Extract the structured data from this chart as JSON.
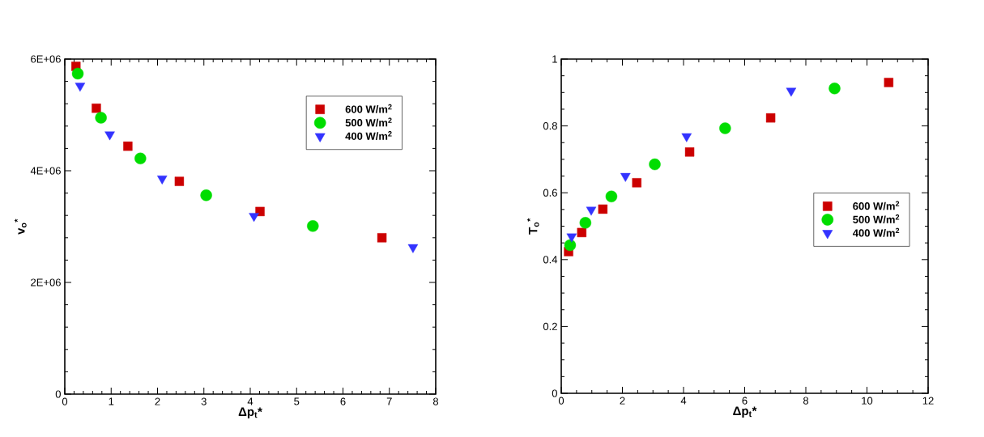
{
  "chart_data": [
    {
      "type": "scatter",
      "xlabel": "Δp$_{t}$*",
      "ylabel": "v$_{o}$$^{*}$",
      "xlim": [
        0,
        8
      ],
      "ylim": [
        0,
        6000000
      ],
      "xticks": [
        0,
        1,
        2,
        3,
        4,
        5,
        6,
        7,
        8
      ],
      "yticks": [
        0,
        {
          "value": 2000000,
          "label": "2E+06"
        },
        {
          "value": 4000000,
          "label": "4E+06"
        },
        {
          "value": 6000000,
          "label": "6E+06"
        }
      ],
      "legend": "top right",
      "grid": false,
      "series": [
        {
          "name": "600 W/m$^{2}$",
          "color": "#cc0000",
          "marker": "square",
          "x": [
            0.24,
            0.68,
            1.36,
            2.47,
            4.21,
            6.84
          ],
          "values": [
            5870000,
            5120000,
            4440000,
            3810000,
            3270000,
            2800000
          ]
        },
        {
          "name": "500 W/m$^{2}$",
          "color": "#00dd00",
          "marker": "circle",
          "x": [
            0.28,
            0.78,
            1.63,
            3.05,
            5.35
          ],
          "values": [
            5740000,
            4950000,
            4220000,
            3560000,
            3010000
          ]
        },
        {
          "name": "400 W/m$^{2}$",
          "color": "#3333ff",
          "marker": "triangle",
          "x": [
            0.33,
            0.97,
            2.1,
            4.08,
            7.51
          ],
          "values": [
            5520000,
            4650000,
            3860000,
            3190000,
            2630000
          ]
        }
      ]
    },
    {
      "type": "scatter",
      "xlabel": "Δp$_{t}$*",
      "ylabel": "T$_{o}$$^{*}$",
      "xlim": [
        0,
        12
      ],
      "ylim": [
        0,
        1
      ],
      "xticks": [
        0,
        2,
        4,
        6,
        8,
        10,
        12
      ],
      "yticks": [
        0,
        0.2,
        0.4,
        0.6,
        0.8,
        1
      ],
      "legend": "right",
      "grid": false,
      "series": [
        {
          "name": "600 W/m$^{2}$",
          "color": "#cc0000",
          "marker": "square",
          "x": [
            0.24,
            0.67,
            1.36,
            2.47,
            4.2,
            6.85,
            10.71
          ],
          "values": [
            0.424,
            0.481,
            0.551,
            0.63,
            0.722,
            0.824,
            0.93
          ]
        },
        {
          "name": "500 W/m$^{2}$",
          "color": "#00dd00",
          "marker": "circle",
          "x": [
            0.29,
            0.79,
            1.64,
            3.06,
            5.36,
            8.94
          ],
          "values": [
            0.443,
            0.51,
            0.589,
            0.685,
            0.793,
            0.912
          ]
        },
        {
          "name": "400 W/m$^{2}$",
          "color": "#3333ff",
          "marker": "triangle",
          "x": [
            0.34,
            0.98,
            2.1,
            4.1,
            7.52
          ],
          "values": [
            0.469,
            0.549,
            0.65,
            0.769,
            0.905
          ]
        }
      ]
    }
  ]
}
